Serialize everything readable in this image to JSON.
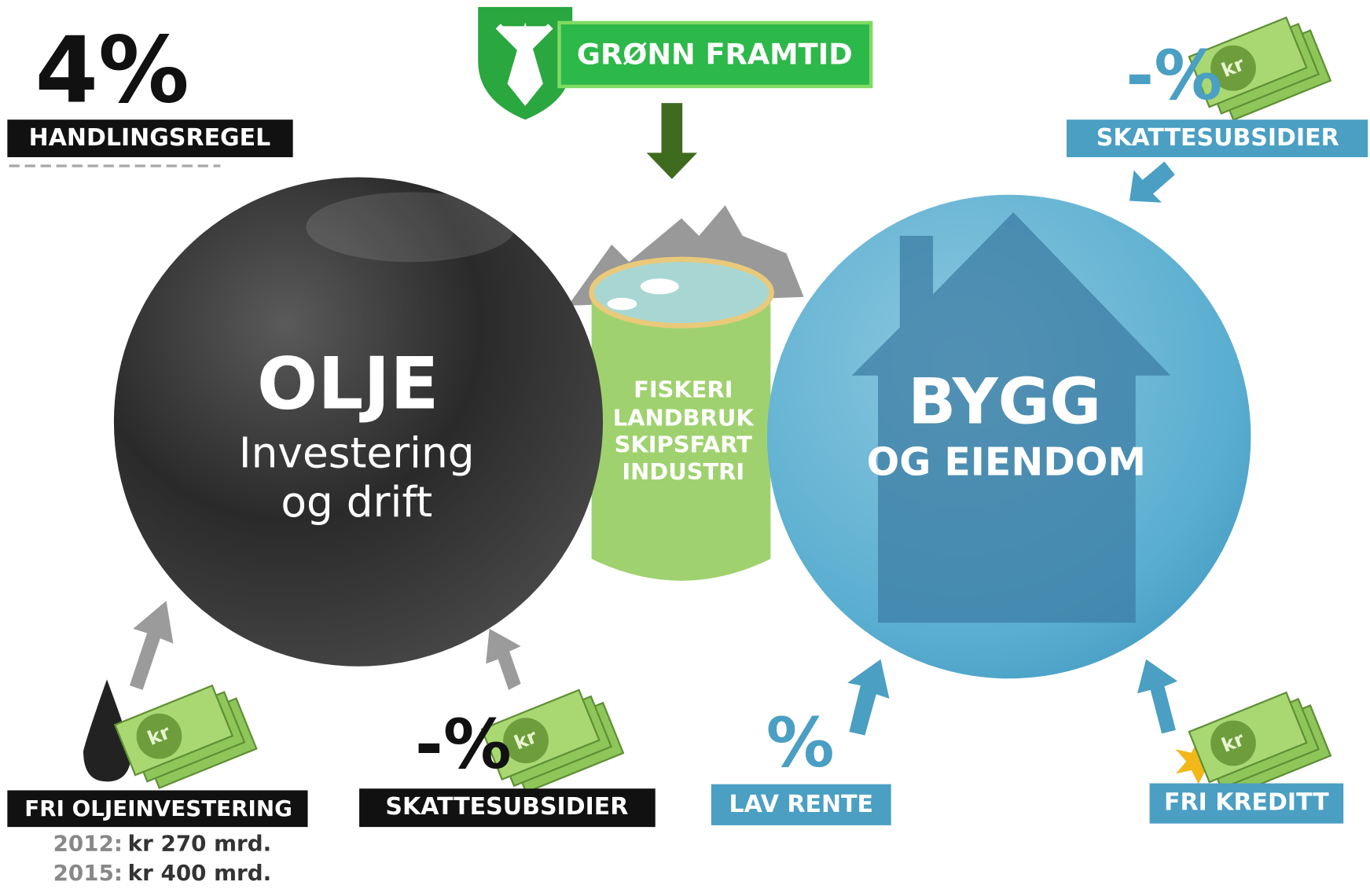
{
  "handlingsregel": {
    "value": "4%",
    "label": "HANDLINGSREGEL"
  },
  "banner": "GRØNN FRAMTID",
  "oil": {
    "title": "OLJE",
    "subtitle": [
      "Investering",
      "og drift"
    ]
  },
  "middle": {
    "sectors": [
      "FISKERI",
      "LANDBRUK",
      "SKIPSFART",
      "INDUSTRI"
    ]
  },
  "building": {
    "title": "BYGG",
    "subtitle": "OG EIENDOM"
  },
  "drivers": [
    {
      "symbol": "-%",
      "label": "SKATTESUBSIDIER"
    },
    {
      "label": "FRI OLJEINVESTERING",
      "notes": [
        [
          "2012:",
          "kr 270 mrd."
        ],
        [
          "2015:",
          "kr 400 mrd."
        ]
      ]
    },
    {
      "symbol": "-%",
      "label": "SKATTESUBSIDIER"
    },
    {
      "symbol": "%",
      "label": "LAV RENTE"
    },
    {
      "label": "FRI KREDITT"
    }
  ],
  "money_icons": [
    "kr",
    "kr",
    "kr",
    "kr"
  ]
}
